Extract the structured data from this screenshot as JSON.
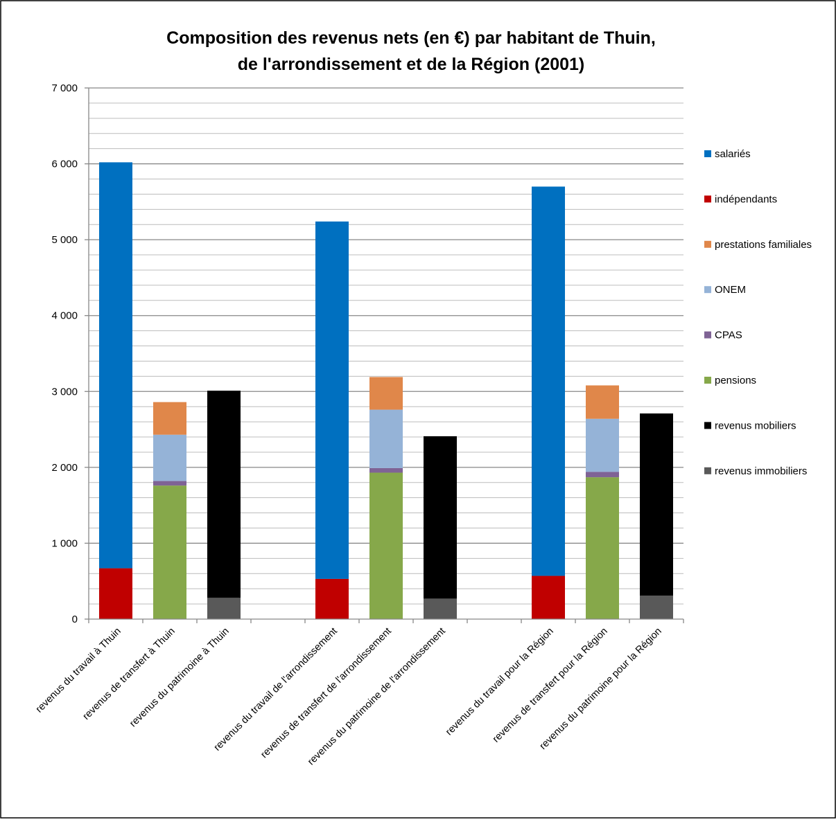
{
  "chart_data": {
    "type": "bar",
    "stacked": true,
    "title_lines": [
      "Composition des revenus nets (en €) par habitant de Thuin,",
      "de l'arrondissement et de la Région (2001)"
    ],
    "categories": [
      "revenus du travail à Thuin",
      "revenus de transfert à Thuin",
      "revenus du patrimoine à Thuin",
      "",
      "revenus du travail de l'arrondissement",
      "revenus de transfert de l'arrondissement",
      "revenus du patrimoine de l'arrondissement",
      "",
      "revenus du travail pour la Région",
      "revenus de transfert pour la Région",
      "revenus du patrimoine pour la Région"
    ],
    "y_ticks": [
      "0",
      "1 000",
      "2 000",
      "3 000",
      "4 000",
      "5 000",
      "6 000",
      "7 000"
    ],
    "ylim": [
      0,
      7000
    ],
    "grid": true,
    "legend_position": "right",
    "series": [
      {
        "name": "salariés",
        "color": "#0070C0",
        "values": [
          5350,
          0,
          0,
          0,
          4710,
          0,
          0,
          0,
          5130,
          0,
          0
        ]
      },
      {
        "name": "indépendants",
        "color": "#C00000",
        "values": [
          670,
          0,
          0,
          0,
          530,
          0,
          0,
          0,
          570,
          0,
          0
        ]
      },
      {
        "name": "prestations familiales",
        "color": "#E0874A",
        "values": [
          0,
          430,
          0,
          0,
          0,
          430,
          0,
          0,
          0,
          440,
          0
        ]
      },
      {
        "name": "ONEM",
        "color": "#95B3D7",
        "values": [
          0,
          610,
          0,
          0,
          0,
          770,
          0,
          0,
          0,
          700,
          0
        ]
      },
      {
        "name": "CPAS",
        "color": "#7F6395",
        "values": [
          0,
          60,
          0,
          0,
          0,
          60,
          0,
          0,
          0,
          70,
          0
        ]
      },
      {
        "name": "pensions",
        "color": "#86A84A",
        "values": [
          0,
          1760,
          0,
          0,
          0,
          1930,
          0,
          0,
          0,
          1870,
          0
        ]
      },
      {
        "name": "revenus mobiliers",
        "color": "#000000",
        "values": [
          0,
          0,
          2730,
          0,
          0,
          0,
          2140,
          0,
          0,
          0,
          2400
        ]
      },
      {
        "name": "revenus immobiliers",
        "color": "#595959",
        "values": [
          0,
          0,
          280,
          0,
          0,
          0,
          270,
          0,
          0,
          0,
          310
        ]
      }
    ]
  }
}
